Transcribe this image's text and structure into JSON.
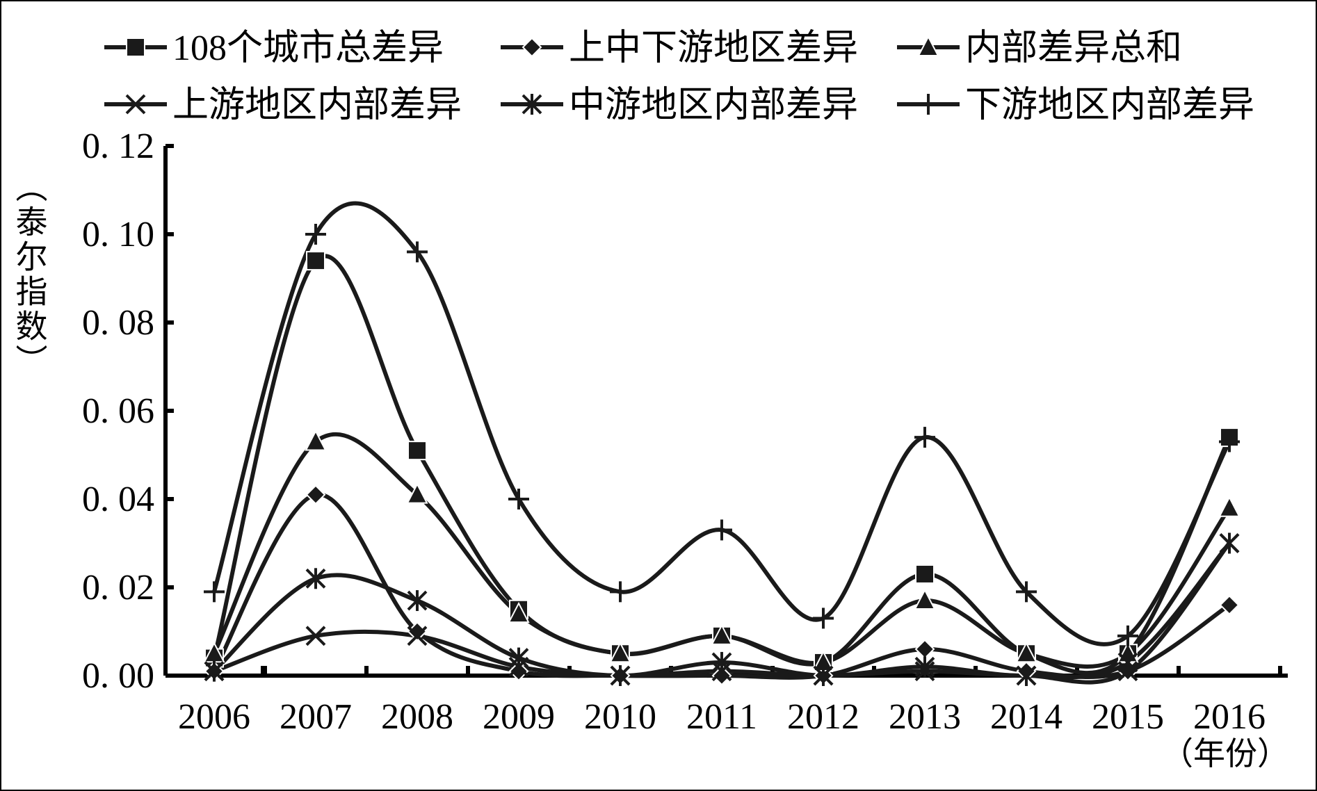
{
  "chart_data": {
    "type": "line",
    "title": "",
    "xlabel": "（年份）",
    "ylabel": "（泰尔指数）",
    "categories": [
      "2006",
      "2007",
      "2008",
      "2009",
      "2010",
      "2011",
      "2012",
      "2013",
      "2014",
      "2015",
      "2016"
    ],
    "ylim": [
      0,
      0.12
    ],
    "yticks": [
      "0. 00",
      "0. 02",
      "0. 04",
      "0. 06",
      "0. 08",
      "0. 10",
      "0. 12"
    ],
    "legend_position": "top",
    "smooth": true,
    "series": [
      {
        "name": "108个城市总差异",
        "marker": "square",
        "values": [
          0.004,
          0.094,
          0.051,
          0.015,
          0.005,
          0.009,
          0.003,
          0.023,
          0.005,
          0.005,
          0.054
        ]
      },
      {
        "name": "上中下游地区差异",
        "marker": "diamond",
        "values": [
          0.001,
          0.041,
          0.01,
          0.001,
          0.0,
          0.0,
          0.0,
          0.006,
          0.001,
          0.001,
          0.016
        ]
      },
      {
        "name": "内部差异总和",
        "marker": "triangle",
        "values": [
          0.005,
          0.053,
          0.041,
          0.014,
          0.005,
          0.009,
          0.003,
          0.017,
          0.005,
          0.005,
          0.038
        ]
      },
      {
        "name": "上游地区内部差异",
        "marker": "x",
        "values": [
          0.001,
          0.009,
          0.009,
          0.002,
          0.0,
          0.001,
          0.0,
          0.001,
          0.0,
          0.001,
          0.03
        ]
      },
      {
        "name": "中游地区内部差异",
        "marker": "asterisk",
        "values": [
          0.001,
          0.022,
          0.017,
          0.004,
          0.0,
          0.003,
          0.0,
          0.002,
          0.0,
          0.003,
          0.03
        ]
      },
      {
        "name": "下游地区内部差异",
        "marker": "plus",
        "values": [
          0.019,
          0.1,
          0.096,
          0.04,
          0.019,
          0.033,
          0.013,
          0.054,
          0.019,
          0.009,
          0.053
        ]
      }
    ],
    "colors": {
      "line": "#1a1a1a",
      "axis": "#000000",
      "background": "#ffffff"
    }
  }
}
